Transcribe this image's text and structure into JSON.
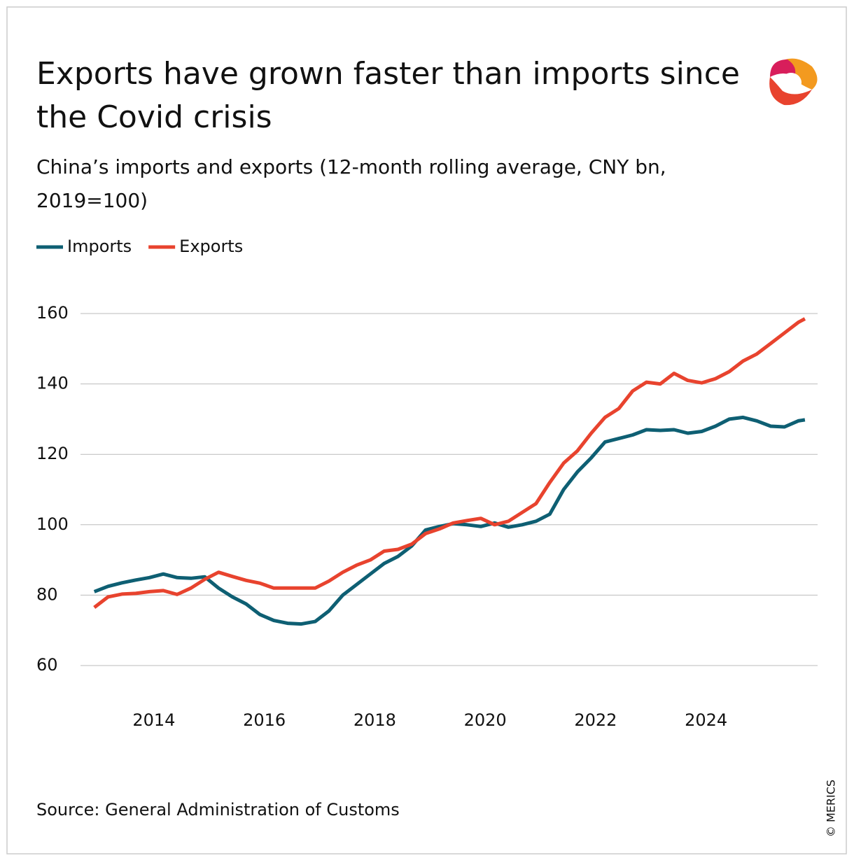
{
  "chart_data": {
    "type": "line",
    "title_lines": [
      "Exports have grown faster than imports since",
      "the Covid crisis"
    ],
    "subtitle_lines": [
      "China’s imports and exports (12-month rolling average, CNY bn,",
      "2019=100)"
    ],
    "source": "Source: General Administration of Customs",
    "copyright": "© MERICS",
    "x": [
      2012.92,
      2013.17,
      2013.42,
      2013.67,
      2013.92,
      2014.17,
      2014.42,
      2014.67,
      2014.92,
      2015.17,
      2015.42,
      2015.67,
      2015.92,
      2016.17,
      2016.42,
      2016.67,
      2016.92,
      2017.17,
      2017.42,
      2017.67,
      2017.92,
      2018.17,
      2018.42,
      2018.67,
      2018.92,
      2019.17,
      2019.42,
      2019.67,
      2019.92,
      2020.17,
      2020.42,
      2020.67,
      2020.92,
      2021.17,
      2021.42,
      2021.67,
      2021.92,
      2022.17,
      2022.42,
      2022.67,
      2022.92,
      2023.17,
      2023.42,
      2023.67,
      2023.92,
      2024.17,
      2024.42,
      2024.67,
      2024.92,
      2025.17,
      2025.42,
      2025.67,
      2025.79
    ],
    "series": [
      {
        "name": "Imports",
        "color": "#0e5f73",
        "values": [
          81,
          82.5,
          83.5,
          84.3,
          85,
          86,
          85,
          84.8,
          85.2,
          82,
          79.5,
          77.5,
          74.5,
          72.8,
          72,
          71.8,
          72.5,
          75.5,
          80,
          83,
          86,
          89,
          91,
          94,
          98.5,
          99.5,
          100.3,
          100,
          99.5,
          100.5,
          99.3,
          100,
          101,
          103,
          110,
          115,
          119,
          123.5,
          124.5,
          125.5,
          127,
          126.8,
          127,
          126,
          126.5,
          128,
          130,
          130.5,
          129.5,
          128,
          127.8,
          129.5,
          129.8
        ]
      },
      {
        "name": "Exports",
        "color": "#e8432e",
        "values": [
          76.5,
          79.5,
          80.3,
          80.5,
          81,
          81.3,
          80.2,
          82,
          84.5,
          86.5,
          85.3,
          84.2,
          83.4,
          82,
          82,
          82,
          82,
          84,
          86.5,
          88.5,
          90,
          92.5,
          93,
          94.5,
          97.5,
          98.8,
          100.5,
          101.2,
          101.8,
          100,
          101,
          103.5,
          106,
          112,
          117.5,
          121,
          126,
          130.5,
          133,
          138,
          140.5,
          140,
          143,
          141,
          140.3,
          141.5,
          143.5,
          146.5,
          148.5,
          151.5,
          154.5,
          157.5,
          158.5
        ]
      }
    ],
    "xlim": [
      2012.67,
      2026.02
    ],
    "xticks": [
      2014,
      2016,
      2018,
      2020,
      2022,
      2024
    ],
    "ylim": [
      60,
      160
    ],
    "yticks": [
      60,
      80,
      100,
      120,
      140,
      160
    ],
    "grid": true
  }
}
